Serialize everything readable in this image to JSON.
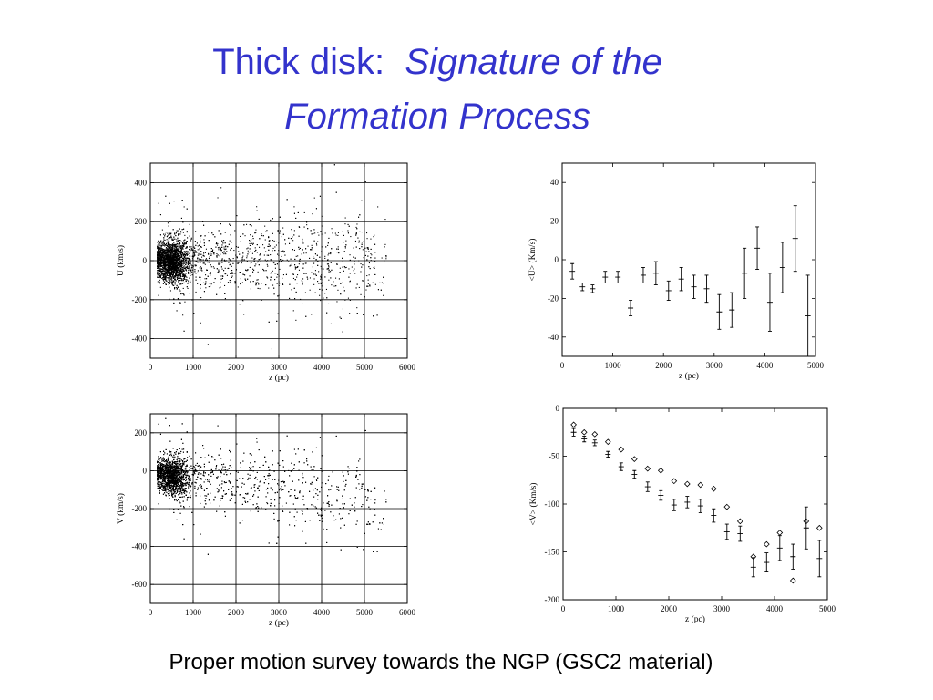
{
  "slide": {
    "title_plain": "Thick disk:",
    "title_italic_line1": "Signature of the",
    "title_italic_line2": "Formation Process",
    "caption": "Proper motion survey towards the NGP (GSC2 material)"
  },
  "chart_data": [
    {
      "id": "u-scatter",
      "type": "scatter",
      "xlabel": "z (pc)",
      "ylabel": "U (km/s)",
      "xlim": [
        0,
        6000
      ],
      "ylim": [
        -500,
        500
      ],
      "xticks": [
        0,
        1000,
        2000,
        3000,
        4000,
        5000,
        6000
      ],
      "yticks": [
        -400,
        -200,
        0,
        200,
        400
      ],
      "grid": true,
      "cloud": {
        "n_points": 4500,
        "z_range": [
          150,
          5500
        ],
        "z_peak": 500,
        "mean": 0,
        "dispersion_near": 45,
        "dispersion_far": 130
      }
    },
    {
      "id": "u-mean",
      "type": "scatter",
      "xlabel": "z (pc)",
      "ylabel": "<U> (Km/s)",
      "xlim": [
        0,
        5000
      ],
      "ylim": [
        -50,
        50
      ],
      "xticks": [
        0,
        1000,
        2000,
        3000,
        4000,
        5000
      ],
      "yticks": [
        -40,
        -20,
        0,
        20,
        40
      ],
      "grid": false,
      "series": [
        {
          "marker": "cross-errorbar",
          "points": [
            {
              "x": 200,
              "y": -6,
              "err": 4
            },
            {
              "x": 400,
              "y": -14,
              "err": 2
            },
            {
              "x": 600,
              "y": -15,
              "err": 2
            },
            {
              "x": 850,
              "y": -9,
              "err": 3
            },
            {
              "x": 1100,
              "y": -9,
              "err": 3
            },
            {
              "x": 1350,
              "y": -25,
              "err": 4
            },
            {
              "x": 1600,
              "y": -8,
              "err": 4
            },
            {
              "x": 1850,
              "y": -7,
              "err": 6
            },
            {
              "x": 2100,
              "y": -16,
              "err": 5
            },
            {
              "x": 2350,
              "y": -10,
              "err": 6
            },
            {
              "x": 2600,
              "y": -14,
              "err": 6
            },
            {
              "x": 2850,
              "y": -15,
              "err": 7
            },
            {
              "x": 3100,
              "y": -27,
              "err": 9
            },
            {
              "x": 3350,
              "y": -26,
              "err": 9
            },
            {
              "x": 3600,
              "y": -7,
              "err": 13
            },
            {
              "x": 3850,
              "y": 6,
              "err": 11
            },
            {
              "x": 4100,
              "y": -22,
              "err": 15
            },
            {
              "x": 4350,
              "y": -4,
              "err": 13
            },
            {
              "x": 4600,
              "y": 11,
              "err": 17
            },
            {
              "x": 4850,
              "y": -29,
              "err": 21
            }
          ]
        }
      ]
    },
    {
      "id": "v-scatter",
      "type": "scatter",
      "xlabel": "z (pc)",
      "ylabel": "V (km/s)",
      "xlim": [
        0,
        6000
      ],
      "ylim": [
        -700,
        300
      ],
      "xticks": [
        0,
        1000,
        2000,
        3000,
        4000,
        5000,
        6000
      ],
      "yticks": [
        -600,
        -400,
        -200,
        0,
        200
      ],
      "grid": true,
      "cloud": {
        "n_points": 4500,
        "z_range": [
          150,
          5500
        ],
        "z_peak": 500,
        "mean_at_zero": -10,
        "mean_slope_per_kpc": -30,
        "dispersion_near": 40,
        "dispersion_far": 120
      }
    },
    {
      "id": "v-mean",
      "type": "scatter",
      "xlabel": "z (pc)",
      "ylabel": "<V> (Km/s)",
      "xlim": [
        0,
        5000
      ],
      "ylim": [
        -200,
        0
      ],
      "xticks": [
        0,
        1000,
        2000,
        3000,
        4000,
        5000
      ],
      "yticks": [
        -200,
        -150,
        -100,
        -50,
        0
      ],
      "grid": false,
      "series": [
        {
          "marker": "cross-errorbar",
          "points": [
            {
              "x": 200,
              "y": -25,
              "err": 4
            },
            {
              "x": 400,
              "y": -32,
              "err": 3
            },
            {
              "x": 600,
              "y": -36,
              "err": 3
            },
            {
              "x": 850,
              "y": -48,
              "err": 3
            },
            {
              "x": 1100,
              "y": -61,
              "err": 4
            },
            {
              "x": 1350,
              "y": -69,
              "err": 4
            },
            {
              "x": 1600,
              "y": -82,
              "err": 5
            },
            {
              "x": 1850,
              "y": -91,
              "err": 5
            },
            {
              "x": 2100,
              "y": -101,
              "err": 6
            },
            {
              "x": 2350,
              "y": -98,
              "err": 6
            },
            {
              "x": 2600,
              "y": -102,
              "err": 7
            },
            {
              "x": 2850,
              "y": -112,
              "err": 7
            },
            {
              "x": 3100,
              "y": -129,
              "err": 8
            },
            {
              "x": 3350,
              "y": -131,
              "err": 8
            },
            {
              "x": 3600,
              "y": -166,
              "err": 10
            },
            {
              "x": 3850,
              "y": -161,
              "err": 10
            },
            {
              "x": 4100,
              "y": -146,
              "err": 13
            },
            {
              "x": 4350,
              "y": -155,
              "err": 13
            },
            {
              "x": 4600,
              "y": -125,
              "err": 22
            },
            {
              "x": 4850,
              "y": -157,
              "err": 19
            }
          ]
        },
        {
          "marker": "diamond",
          "points": [
            {
              "x": 200,
              "y": -17
            },
            {
              "x": 400,
              "y": -25
            },
            {
              "x": 600,
              "y": -27
            },
            {
              "x": 850,
              "y": -35
            },
            {
              "x": 1100,
              "y": -43
            },
            {
              "x": 1350,
              "y": -53
            },
            {
              "x": 1600,
              "y": -63
            },
            {
              "x": 1850,
              "y": -65
            },
            {
              "x": 2100,
              "y": -76
            },
            {
              "x": 2350,
              "y": -79
            },
            {
              "x": 2600,
              "y": -80
            },
            {
              "x": 2850,
              "y": -84
            },
            {
              "x": 3100,
              "y": -103
            },
            {
              "x": 3350,
              "y": -118
            },
            {
              "x": 3600,
              "y": -155
            },
            {
              "x": 3850,
              "y": -142
            },
            {
              "x": 4100,
              "y": -130
            },
            {
              "x": 4350,
              "y": -180
            },
            {
              "x": 4600,
              "y": -118
            },
            {
              "x": 4850,
              "y": -125
            }
          ]
        }
      ]
    }
  ]
}
